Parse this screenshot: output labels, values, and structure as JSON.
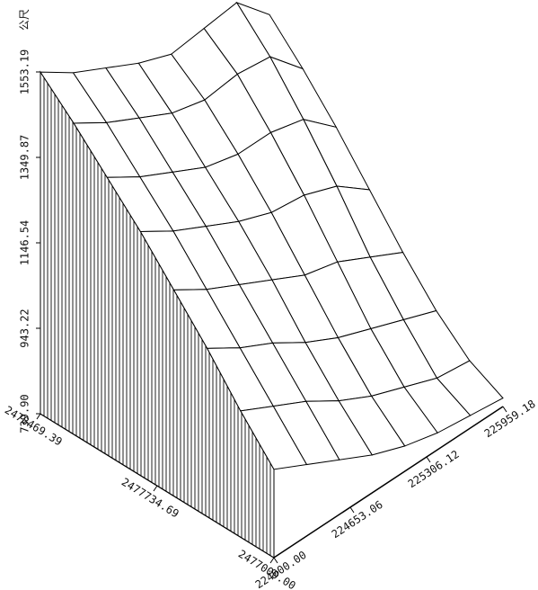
{
  "chart_data": {
    "type": "surface3d",
    "zlabel": "公尺",
    "x": [
      2478469.39,
      2478259.48,
      2478049.56,
      2477839.65,
      2477629.74,
      2477419.83,
      2477209.91,
      2477000
    ],
    "y": [
      224000,
      224279.88,
      224559.77,
      224839.65,
      225119.53,
      225399.41,
      225679.3,
      225959.18
    ],
    "z": [
      [
        1553,
        1500,
        1460,
        1420,
        1390,
        1400,
        1410,
        1330
      ],
      [
        1480,
        1430,
        1390,
        1350,
        1330,
        1340,
        1330,
        1250
      ],
      [
        1400,
        1350,
        1310,
        1270,
        1250,
        1250,
        1230,
        1160
      ],
      [
        1320,
        1270,
        1230,
        1190,
        1160,
        1150,
        1120,
        1060
      ],
      [
        1230,
        1180,
        1140,
        1100,
        1060,
        1040,
        1000,
        960
      ],
      [
        1140,
        1090,
        1050,
        1000,
        960,
        930,
        900,
        870
      ],
      [
        1040,
        1000,
        960,
        910,
        870,
        840,
        810,
        800
      ],
      [
        950,
        910,
        870,
        830,
        800,
        780,
        770,
        760
      ]
    ],
    "xlim": [
      2477000,
      2478469.39
    ],
    "xticks": [
      2478469.39,
      2477734.69,
      {
        "value": 2477000,
        "label": "2477000.00"
      }
    ],
    "ylim": [
      224000,
      225959.18
    ],
    "yticks": [
      {
        "value": 224000,
        "label": "224000.00"
      },
      224653.06,
      225306.12,
      225959.18
    ],
    "zlim": [
      739.9,
      1553.19
    ],
    "zticks": [
      {
        "value": 739.9,
        "label": "739.90"
      },
      943.22,
      1146.54,
      1349.87,
      1553.19
    ],
    "color": "#000000"
  }
}
